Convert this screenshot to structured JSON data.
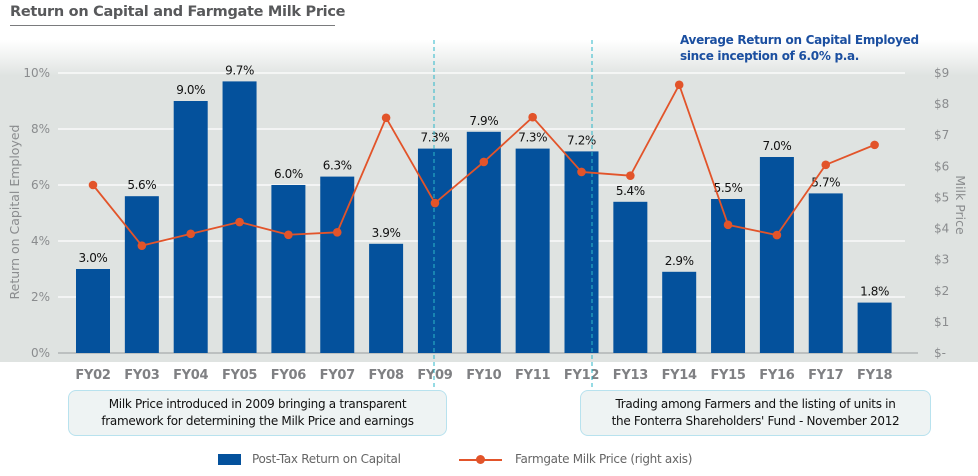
{
  "chart_data": {
    "type": "bar",
    "title": "Return on Capital and Farmgate Milk Price",
    "categories": [
      "FY02",
      "FY03",
      "FY04",
      "FY05",
      "FY06",
      "FY07",
      "FY08",
      "FY09",
      "FY10",
      "FY11",
      "FY12",
      "FY13",
      "FY14",
      "FY15",
      "FY16",
      "FY17",
      "FY18"
    ],
    "series": [
      {
        "name": "Post-Tax Return on Capital",
        "type": "bar",
        "axis": "left",
        "color": "#04519c",
        "values": [
          3.0,
          5.6,
          9.0,
          9.7,
          6.0,
          6.3,
          3.9,
          7.3,
          7.9,
          7.3,
          7.2,
          5.4,
          2.9,
          5.5,
          7.0,
          5.7,
          1.8
        ],
        "labels": [
          "3.0%",
          "5.6%",
          "9.0%",
          "9.7%",
          "6.0%",
          "6.3%",
          "3.9%",
          "7.3%",
          "7.9%",
          "7.3%",
          "7.2%",
          "5.4%",
          "2.9%",
          "5.5%",
          "7.0%",
          "5.7%",
          "1.8%"
        ]
      },
      {
        "name": "Farmgate Milk Price (right axis)",
        "type": "line",
        "axis": "right",
        "color": "#e2542a",
        "values": [
          5.4,
          3.45,
          3.83,
          4.21,
          3.8,
          3.88,
          7.56,
          4.82,
          6.14,
          7.58,
          5.82,
          5.7,
          8.62,
          4.12,
          3.79,
          6.05,
          6.69
        ]
      }
    ],
    "ylabel": "Return on Capital Employed",
    "ylim": [
      0,
      10
    ],
    "yticks": [
      "0%",
      "2%",
      "4%",
      "6%",
      "8%",
      "10%"
    ],
    "ytick_values": [
      0,
      2,
      4,
      6,
      8,
      10
    ],
    "y2label": "Milk Price",
    "y2lim": [
      0,
      9
    ],
    "y2ticks": [
      "$-",
      "$1",
      "$2",
      "$3",
      "$4",
      "$5",
      "$6",
      "$7",
      "$8",
      "$9"
    ],
    "y2tick_values": [
      0,
      1,
      2,
      3,
      4,
      5,
      6,
      7,
      8,
      9
    ],
    "xlabel": "",
    "grid": true,
    "legend_position": "bottom-center",
    "reference_lines": [
      {
        "between": [
          "FY08",
          "FY09"
        ],
        "at": "FY09",
        "style": "dashed",
        "color": "#2bb7c9"
      },
      {
        "at": "FY12",
        "style": "dashed",
        "color": "#2bb7c9"
      }
    ],
    "annotations": [
      {
        "text_lines": [
          "Average Return on Capital Employed",
          "since inception of 6.0% p.a."
        ],
        "position": "top-right",
        "color": "#1b4fa0"
      },
      {
        "text_lines": [
          "Milk Price introduced in 2009 bringing a transparent",
          "framework for determining the Milk Price and earnings"
        ],
        "position": "bottom-left"
      },
      {
        "text_lines": [
          "Trading among Farmers and the listing of units in",
          "the Fonterra Shareholders' Fund - November 2012"
        ],
        "position": "bottom-right"
      }
    ]
  },
  "legend": {
    "bar_label": "Post-Tax Return on Capital",
    "line_label": "Farmgate Milk Price (right axis)"
  },
  "avg_note": {
    "line1": "Average Return on Capital Employed",
    "line2": "since inception of 6.0% p.a."
  },
  "annot1": {
    "line1": "Milk Price introduced in 2009 bringing a transparent",
    "line2": "framework for determining the Milk Price and earnings"
  },
  "annot2": {
    "line1": "Trading among Farmers and the listing of units in",
    "line2": "the Fonterra Shareholders' Fund - November 2012"
  }
}
